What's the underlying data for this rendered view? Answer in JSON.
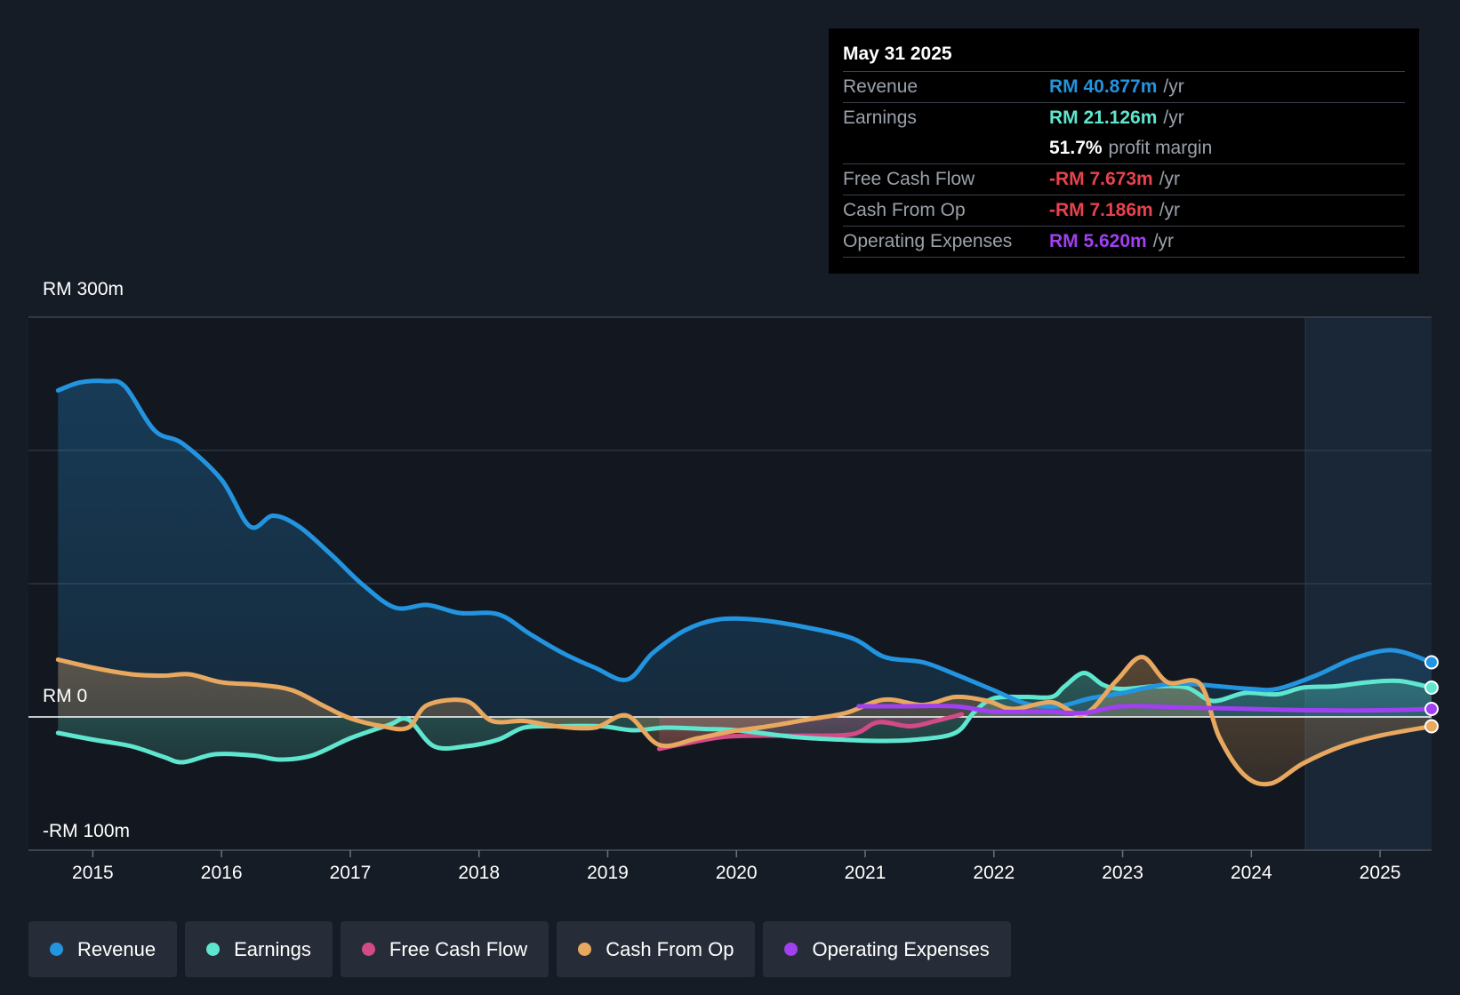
{
  "chart_data": {
    "type": "line",
    "title": "",
    "y_axis_labels": [
      "RM 300m",
      "RM 0",
      "-RM 100m"
    ],
    "ylim": [
      -100,
      300
    ],
    "xlim": [
      2014.5,
      2025.4
    ],
    "x_ticks": [
      "2015",
      "2016",
      "2017",
      "2018",
      "2019",
      "2020",
      "2021",
      "2022",
      "2023",
      "2024",
      "2025"
    ],
    "x_tick_values": [
      2015,
      2016,
      2017,
      2018,
      2019,
      2020,
      2021,
      2022,
      2023,
      2024,
      2025
    ],
    "forecast_start": 2024.42,
    "series": [
      {
        "name": "Revenue",
        "color": "#2394e0",
        "fill": true,
        "points": [
          [
            2014.73,
            245
          ],
          [
            2014.9,
            251
          ],
          [
            2015.1,
            252
          ],
          [
            2015.25,
            248
          ],
          [
            2015.48,
            215
          ],
          [
            2015.7,
            205
          ],
          [
            2016.0,
            178
          ],
          [
            2016.22,
            143
          ],
          [
            2016.4,
            151
          ],
          [
            2016.6,
            143
          ],
          [
            2016.85,
            122
          ],
          [
            2017.1,
            99
          ],
          [
            2017.35,
            82
          ],
          [
            2017.6,
            84
          ],
          [
            2017.85,
            78
          ],
          [
            2018.15,
            77
          ],
          [
            2018.4,
            62
          ],
          [
            2018.65,
            48
          ],
          [
            2018.9,
            37
          ],
          [
            2019.15,
            28
          ],
          [
            2019.35,
            48
          ],
          [
            2019.6,
            65
          ],
          [
            2019.85,
            73
          ],
          [
            2020.15,
            73
          ],
          [
            2020.5,
            68
          ],
          [
            2020.9,
            59
          ],
          [
            2021.15,
            45
          ],
          [
            2021.45,
            41
          ],
          [
            2021.7,
            32
          ],
          [
            2022.0,
            20
          ],
          [
            2022.25,
            10
          ],
          [
            2022.5,
            8
          ],
          [
            2022.75,
            14
          ],
          [
            2023.0,
            18
          ],
          [
            2023.3,
            24
          ],
          [
            2023.5,
            25
          ],
          [
            2023.75,
            23
          ],
          [
            2024.0,
            21
          ],
          [
            2024.2,
            21
          ],
          [
            2024.5,
            31
          ],
          [
            2024.8,
            44
          ],
          [
            2025.1,
            50
          ],
          [
            2025.4,
            41
          ]
        ]
      },
      {
        "name": "Earnings",
        "color": "#5fe6cf",
        "fill": true,
        "points": [
          [
            2014.73,
            -12
          ],
          [
            2015.0,
            -17
          ],
          [
            2015.3,
            -22
          ],
          [
            2015.55,
            -30
          ],
          [
            2015.7,
            -34
          ],
          [
            2015.95,
            -28
          ],
          [
            2016.25,
            -29
          ],
          [
            2016.45,
            -32
          ],
          [
            2016.7,
            -29
          ],
          [
            2017.0,
            -16
          ],
          [
            2017.3,
            -6
          ],
          [
            2017.45,
            -2
          ],
          [
            2017.65,
            -22
          ],
          [
            2017.9,
            -22
          ],
          [
            2018.15,
            -17
          ],
          [
            2018.35,
            -8
          ],
          [
            2018.6,
            -7
          ],
          [
            2018.95,
            -7
          ],
          [
            2019.2,
            -10
          ],
          [
            2019.45,
            -8
          ],
          [
            2019.75,
            -9
          ],
          [
            2020.0,
            -10
          ],
          [
            2020.45,
            -15
          ],
          [
            2020.8,
            -17
          ],
          [
            2021.1,
            -18
          ],
          [
            2021.4,
            -17
          ],
          [
            2021.7,
            -12
          ],
          [
            2021.85,
            4
          ],
          [
            2022.0,
            14
          ],
          [
            2022.25,
            15
          ],
          [
            2022.45,
            15
          ],
          [
            2022.55,
            23
          ],
          [
            2022.7,
            33
          ],
          [
            2022.85,
            24
          ],
          [
            2023.0,
            21
          ],
          [
            2023.25,
            23
          ],
          [
            2023.5,
            22
          ],
          [
            2023.7,
            12
          ],
          [
            2023.95,
            18
          ],
          [
            2024.2,
            17
          ],
          [
            2024.4,
            22
          ],
          [
            2024.65,
            23
          ],
          [
            2024.9,
            26
          ],
          [
            2025.15,
            27
          ],
          [
            2025.4,
            22
          ]
        ]
      },
      {
        "name": "Free Cash Flow",
        "color": "#d24a86",
        "fill": true,
        "points": [
          [
            2019.4,
            -24
          ],
          [
            2019.6,
            -20
          ],
          [
            2019.9,
            -15
          ],
          [
            2020.2,
            -14
          ],
          [
            2020.5,
            -14
          ],
          [
            2020.9,
            -13
          ],
          [
            2021.1,
            -4
          ],
          [
            2021.35,
            -7
          ],
          [
            2021.55,
            -3
          ],
          [
            2021.75,
            2
          ]
        ]
      },
      {
        "name": "Cash From Op",
        "color": "#e8a85f",
        "fill": true,
        "points": [
          [
            2014.73,
            43
          ],
          [
            2015.0,
            37
          ],
          [
            2015.3,
            32
          ],
          [
            2015.55,
            31
          ],
          [
            2015.75,
            32
          ],
          [
            2016.0,
            26
          ],
          [
            2016.3,
            24
          ],
          [
            2016.55,
            20
          ],
          [
            2016.8,
            8
          ],
          [
            2017.0,
            -1
          ],
          [
            2017.25,
            -7
          ],
          [
            2017.45,
            -8
          ],
          [
            2017.6,
            9
          ],
          [
            2017.9,
            12
          ],
          [
            2018.1,
            -3
          ],
          [
            2018.35,
            -3
          ],
          [
            2018.6,
            -7
          ],
          [
            2018.9,
            -8
          ],
          [
            2019.15,
            1
          ],
          [
            2019.4,
            -21
          ],
          [
            2019.7,
            -16
          ],
          [
            2019.95,
            -11
          ],
          [
            2020.25,
            -7
          ],
          [
            2020.55,
            -2
          ],
          [
            2020.85,
            3
          ],
          [
            2021.15,
            13
          ],
          [
            2021.45,
            9
          ],
          [
            2021.7,
            15
          ],
          [
            2021.95,
            12
          ],
          [
            2022.15,
            6
          ],
          [
            2022.45,
            11
          ],
          [
            2022.7,
            2
          ],
          [
            2022.95,
            27
          ],
          [
            2023.15,
            45
          ],
          [
            2023.35,
            26
          ],
          [
            2023.6,
            25
          ],
          [
            2023.75,
            -15
          ],
          [
            2023.95,
            -44
          ],
          [
            2024.15,
            -50
          ],
          [
            2024.4,
            -35
          ],
          [
            2024.7,
            -22
          ],
          [
            2025.0,
            -14
          ],
          [
            2025.4,
            -7
          ]
        ]
      },
      {
        "name": "Operating Expenses",
        "color": "#a040f0",
        "fill": false,
        "points": [
          [
            2020.95,
            8
          ],
          [
            2021.3,
            8
          ],
          [
            2021.7,
            8
          ],
          [
            2022.0,
            4
          ],
          [
            2022.4,
            4
          ],
          [
            2022.7,
            3
          ],
          [
            2023.0,
            8
          ],
          [
            2023.5,
            7
          ],
          [
            2024.0,
            6
          ],
          [
            2024.5,
            5
          ],
          [
            2025.0,
            5
          ],
          [
            2025.4,
            6
          ]
        ]
      }
    ]
  },
  "tooltip": {
    "date": "May 31 2025",
    "revenue_label": "Revenue",
    "revenue_value": "RM 40.877m",
    "revenue_unit": "/yr",
    "earnings_label": "Earnings",
    "earnings_value": "RM 21.126m",
    "earnings_unit": "/yr",
    "margin_value": "51.7%",
    "margin_label": "profit margin",
    "fcf_label": "Free Cash Flow",
    "fcf_value": "-RM 7.673m",
    "fcf_unit": "/yr",
    "cfo_label": "Cash From Op",
    "cfo_value": "-RM 7.186m",
    "cfo_unit": "/yr",
    "opex_label": "Operating Expenses",
    "opex_value": "RM 5.620m",
    "opex_unit": "/yr"
  },
  "legend": {
    "items": [
      {
        "label": "Revenue",
        "color": "#2394e0"
      },
      {
        "label": "Earnings",
        "color": "#5fe6cf"
      },
      {
        "label": "Free Cash Flow",
        "color": "#d24a86"
      },
      {
        "label": "Cash From Op",
        "color": "#e8a85f"
      },
      {
        "label": "Operating Expenses",
        "color": "#a040f0"
      }
    ]
  }
}
